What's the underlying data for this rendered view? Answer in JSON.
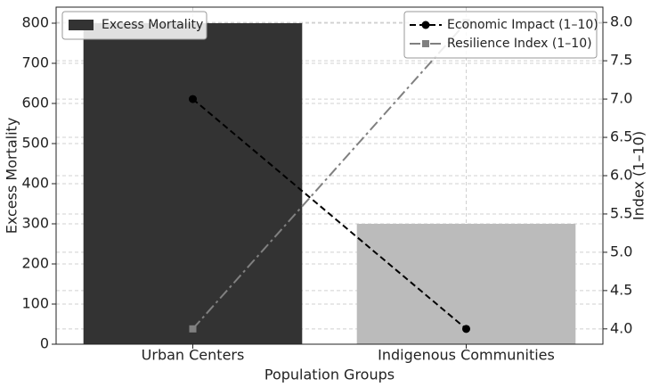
{
  "chart_data": {
    "type": "bar",
    "x_label": "Population Groups",
    "y_label": "Excess Mortality",
    "y2_label": "Index (1–10)",
    "categories": [
      "Urban Centers",
      "Indigenous Communities"
    ],
    "series": [
      {
        "name": "Excess Mortality",
        "type": "bar",
        "colors": [
          "#333333",
          "#bbbbbb"
        ],
        "values": [
          800,
          300
        ],
        "legend": "upper left"
      },
      {
        "name": "Economic Impact (1–10)",
        "type": "line",
        "axis": "y2",
        "color": "#000000",
        "line_style": "dashed",
        "marker": "circle",
        "values": [
          7.0,
          4.0
        ],
        "legend": "upper right"
      },
      {
        "name": "Resilience Index (1–10)",
        "type": "line",
        "axis": "y2",
        "color": "#808080",
        "line_style": "dashdot",
        "marker": "square",
        "values": [
          4.0,
          8.0
        ],
        "legend": "upper right"
      }
    ],
    "ylim": [
      0,
      840
    ],
    "yticks": [
      0,
      100,
      200,
      300,
      400,
      500,
      600,
      700,
      800
    ],
    "y2lim": [
      3.8,
      8.2
    ],
    "y2ticks": [
      {
        "value": 4,
        "label": "4.0"
      },
      4.5,
      {
        "value": 5,
        "label": "5.0"
      },
      5.5,
      {
        "value": 6,
        "label": "6.0"
      },
      6.5,
      {
        "value": 7,
        "label": "7.0"
      },
      7.5,
      {
        "value": 8,
        "label": "8.0"
      }
    ],
    "grid": true
  }
}
